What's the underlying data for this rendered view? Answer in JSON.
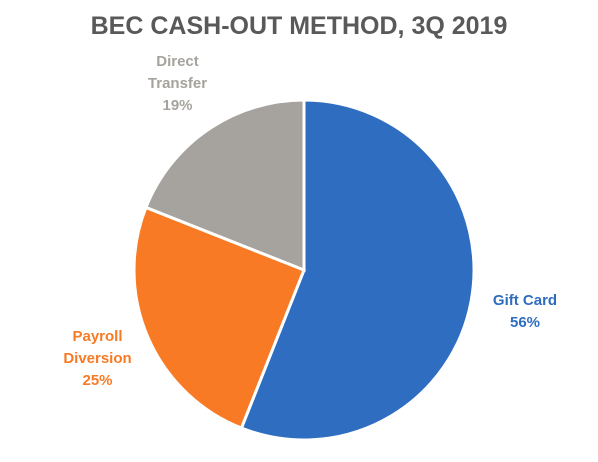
{
  "chart_data": {
    "type": "pie",
    "title": "BEC CASH-OUT METHOD, 3Q 2019",
    "categories": [
      "Gift Card",
      "Payroll Diversion",
      "Direct Transfer"
    ],
    "values": [
      56,
      25,
      19
    ],
    "value_labels": [
      "56%",
      "25%",
      "19%"
    ],
    "colors": [
      "#2e6dbf",
      "#f97a25",
      "#a6a39e"
    ]
  }
}
